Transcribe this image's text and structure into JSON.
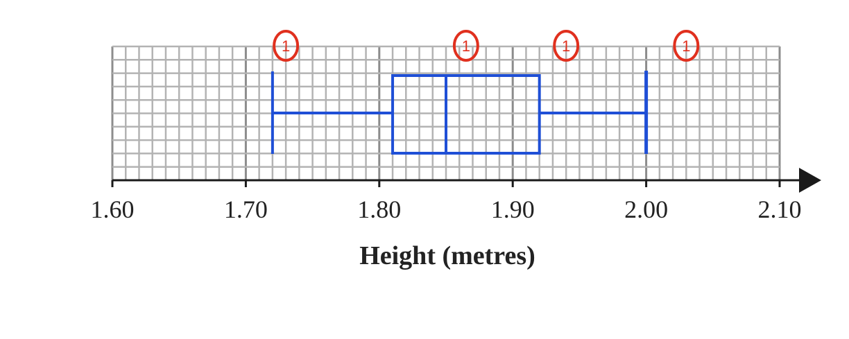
{
  "chart_data": {
    "type": "box",
    "xlabel": "Height (metres)",
    "xlim": [
      1.6,
      2.1
    ],
    "ticks": [
      1.6,
      1.7,
      1.8,
      1.9,
      2.0,
      2.1
    ],
    "tick_labels": [
      "1.60",
      "1.70",
      "1.80",
      "1.90",
      "2.00",
      "2.10"
    ],
    "box": {
      "min": 1.72,
      "q1": 1.81,
      "median": 1.85,
      "q3": 1.92,
      "max": 2.0
    },
    "grid": true,
    "colors": {
      "box": "#1f4fd6",
      "marks": "#e0301e",
      "grid": "#b3b3b3"
    },
    "marks": [
      {
        "x": 1.73,
        "text": "1"
      },
      {
        "x": 1.865,
        "text": "1"
      },
      {
        "x": 1.94,
        "text": "1"
      },
      {
        "x": 2.03,
        "text": "1"
      }
    ]
  }
}
